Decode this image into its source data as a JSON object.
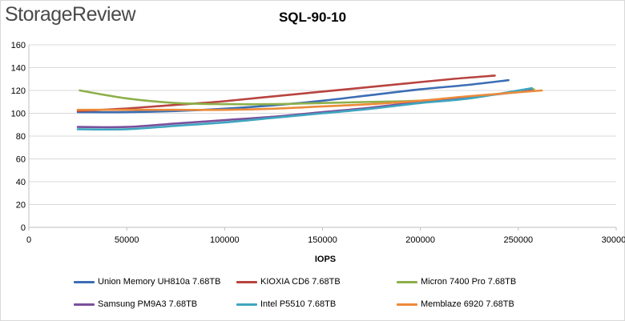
{
  "brand": "StorageReview",
  "chart_data": {
    "type": "line",
    "title": "SQL-90-10",
    "xlabel": "IOPS",
    "ylabel": "",
    "xlim": [
      0,
      300000
    ],
    "ylim": [
      0,
      160
    ],
    "xticks": [
      0,
      50000,
      100000,
      150000,
      200000,
      250000,
      300000
    ],
    "yticks": [
      0,
      20,
      40,
      60,
      80,
      100,
      120,
      140,
      160
    ],
    "grid": "horizontal",
    "legend": "bottom",
    "series": [
      {
        "name": "Union Memory UH810a 7.68TB",
        "color": "#3c6eb4",
        "x": [
          25000,
          50000,
          75000,
          100000,
          125000,
          150000,
          175000,
          200000,
          225000,
          245000
        ],
        "y": [
          101,
          101,
          102,
          104,
          107,
          111,
          116,
          121,
          125,
          129
        ]
      },
      {
        "name": "KIOXIA CD6 7.68TB",
        "color": "#b8433f",
        "x": [
          25000,
          48000,
          72000,
          96000,
          120000,
          144000,
          168000,
          192000,
          216000,
          238000
        ],
        "y": [
          102,
          104,
          107,
          110,
          114,
          118,
          122,
          126,
          130,
          133
        ]
      },
      {
        "name": "Micron 7400 Pro 7.68TB",
        "color": "#8db04a",
        "x": [
          26000,
          50000,
          75000,
          100000,
          125000,
          150000,
          175000,
          200000,
          225000,
          258000
        ],
        "y": [
          120,
          113,
          109,
          108,
          108,
          109,
          110,
          111,
          114,
          121
        ]
      },
      {
        "name": "Samsung PM9A3 7.68TB",
        "color": "#7b4f9c",
        "x": [
          25000,
          50000,
          75000,
          100000,
          125000,
          150000,
          175000,
          200000,
          225000,
          257000
        ],
        "y": [
          88,
          88,
          91,
          94,
          97,
          101,
          105,
          110,
          114,
          120
        ]
      },
      {
        "name": "Intel P5510 7.68TB",
        "color": "#3ea6bf",
        "x": [
          25000,
          50000,
          75000,
          100000,
          125000,
          150000,
          175000,
          200000,
          225000,
          257000
        ],
        "y": [
          86,
          86,
          89,
          92,
          96,
          100,
          104,
          109,
          113,
          122
        ]
      },
      {
        "name": "Memblaze 6920 7.68TB",
        "color": "#ec8b3a",
        "x": [
          25000,
          50000,
          75000,
          100000,
          125000,
          150000,
          175000,
          200000,
          225000,
          262000
        ],
        "y": [
          103,
          103,
          103,
          103,
          104,
          106,
          108,
          111,
          115,
          120
        ]
      }
    ]
  }
}
